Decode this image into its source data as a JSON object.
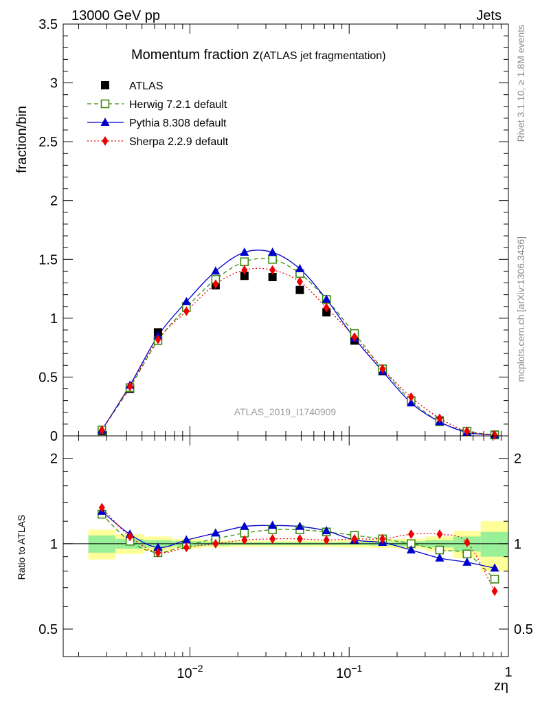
{
  "header": {
    "energy_label": "13000 GeV pp",
    "process_label": "Jets",
    "side_label_rivet": "Rivet 3.1.10, ≥ 1.8M events",
    "side_label_site": "mcplots.cern.ch [arXiv:1306.3436]"
  },
  "chart_data": [
    {
      "type": "scatter",
      "title_main": "Momentum fraction z",
      "title_sub": "(ATLAS jet fragmentation)",
      "ylabel": "fraction/bin",
      "watermark": "ATLAS_2019_I1740909",
      "xscale": "log",
      "xlim": [
        0.0016,
        1.0
      ],
      "ylim": [
        0,
        3.5
      ],
      "ytick_labels": [
        "0",
        "0.5",
        "1",
        "1.5",
        "2",
        "2.5",
        "3",
        "3.5"
      ],
      "legend_position": "top-left",
      "x": [
        0.0028,
        0.0042,
        0.0063,
        0.0095,
        0.0145,
        0.022,
        0.033,
        0.049,
        0.072,
        0.108,
        0.162,
        0.245,
        0.37,
        0.55,
        0.82
      ],
      "series": [
        {
          "name": "ATLAS",
          "color": "#000000",
          "marker": "filled-square",
          "values": [
            0.04,
            0.4,
            0.88,
            1.1,
            1.28,
            1.36,
            1.35,
            1.24,
            1.05,
            0.81,
            0.55,
            0.3,
            0.13,
            0.04,
            0.01
          ]
        },
        {
          "name": "Herwig 7.2.1 default",
          "color": "#3a8a10",
          "marker": "open-square",
          "line": "dashed",
          "values": [
            0.05,
            0.41,
            0.81,
            1.09,
            1.33,
            1.48,
            1.5,
            1.38,
            1.16,
            0.87,
            0.57,
            0.3,
            0.12,
            0.04,
            0.008
          ]
        },
        {
          "name": "Pythia 8.308 default",
          "color": "#0000cc",
          "marker": "filled-triangle",
          "line": "solid",
          "values": [
            0.05,
            0.43,
            0.85,
            1.14,
            1.4,
            1.56,
            1.56,
            1.42,
            1.16,
            0.83,
            0.55,
            0.28,
            0.12,
            0.03,
            0.008
          ]
        },
        {
          "name": "Sherpa 2.2.9 default",
          "color": "#ee0000",
          "marker": "filled-diamond",
          "line": "dotted",
          "values": [
            0.05,
            0.42,
            0.82,
            1.06,
            1.29,
            1.41,
            1.41,
            1.31,
            1.09,
            0.84,
            0.57,
            0.33,
            0.15,
            0.04,
            0.007
          ]
        }
      ]
    },
    {
      "type": "line",
      "ylabel": "Ratio to ATLAS",
      "xlabel": "zη",
      "xscale": "log",
      "yscale": "log",
      "xlim": [
        0.0016,
        1.0
      ],
      "ylim": [
        0.4,
        2.4
      ],
      "ytick_labels": [
        "0.5",
        "1",
        "2"
      ],
      "xtick_labels": [
        "10⁻²",
        "10⁻¹",
        "1"
      ],
      "x": [
        0.0028,
        0.0042,
        0.0063,
        0.0095,
        0.0145,
        0.022,
        0.033,
        0.049,
        0.072,
        0.108,
        0.162,
        0.245,
        0.37,
        0.55,
        0.82
      ],
      "bin_edges": [
        0.0023,
        0.0034,
        0.0051,
        0.0077,
        0.0118,
        0.018,
        0.027,
        0.04,
        0.06,
        0.089,
        0.133,
        0.2,
        0.3,
        0.45,
        0.67,
        1.0
      ],
      "band_inner": [
        0.07,
        0.04,
        0.03,
        0.02,
        0.015,
        0.012,
        0.012,
        0.012,
        0.012,
        0.012,
        0.015,
        0.02,
        0.03,
        0.06,
        0.1
      ],
      "band_outer": [
        0.12,
        0.08,
        0.06,
        0.04,
        0.03,
        0.025,
        0.025,
        0.025,
        0.025,
        0.03,
        0.035,
        0.04,
        0.06,
        0.11,
        0.2
      ],
      "series": [
        {
          "name": "Herwig 7.2.1 default",
          "color": "#3a8a10",
          "marker": "open-square",
          "line": "dashed",
          "values": [
            1.27,
            1.02,
            0.93,
            0.99,
            1.04,
            1.09,
            1.12,
            1.12,
            1.1,
            1.07,
            1.04,
            1.0,
            0.95,
            0.92,
            0.75
          ]
        },
        {
          "name": "Pythia 8.308 default",
          "color": "#0000cc",
          "marker": "filled-triangle",
          "line": "solid",
          "values": [
            1.3,
            1.08,
            0.97,
            1.03,
            1.09,
            1.15,
            1.16,
            1.15,
            1.11,
            1.03,
            1.01,
            0.95,
            0.89,
            0.86,
            0.82
          ]
        },
        {
          "name": "Sherpa 2.2.9 default",
          "color": "#ee0000",
          "marker": "filled-diamond",
          "line": "dotted",
          "values": [
            1.34,
            1.06,
            0.93,
            0.97,
            1.0,
            1.03,
            1.04,
            1.04,
            1.03,
            1.04,
            1.04,
            1.08,
            1.08,
            1.01,
            0.68
          ]
        }
      ]
    }
  ]
}
